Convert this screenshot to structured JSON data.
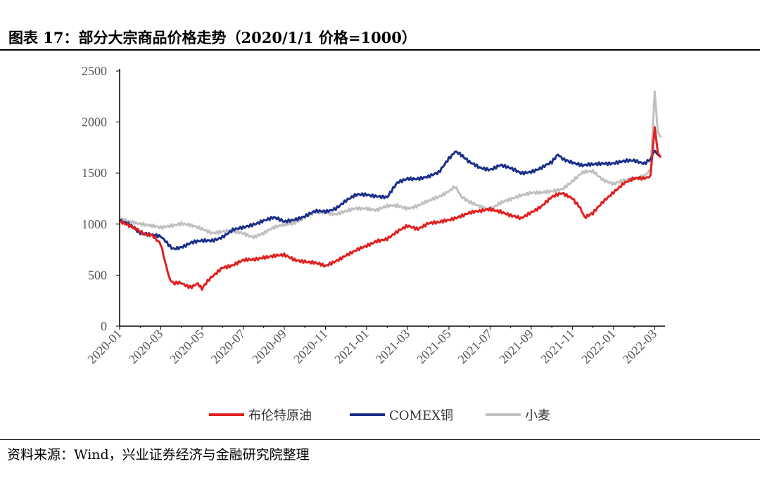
{
  "title": "图表 17：部分大宗商品价格走势（2020/1/1 价格=1000）",
  "source": "资料来源：Wind，兴业证券经济与金融研究院整理",
  "chart_data": {
    "type": "line",
    "title": "部分大宗商品价格走势（2020/1/1 价格=1000）",
    "xlabel": "",
    "ylabel": "",
    "ylim": [
      0,
      2500
    ],
    "yticks": [
      0,
      500,
      1000,
      1500,
      2000,
      2500
    ],
    "xlim": [
      0,
      26.5
    ],
    "x_tick_labels": [
      "2020-01",
      "2020-03",
      "2020-05",
      "2020-07",
      "2020-09",
      "2020-11",
      "2021-01",
      "2021-03",
      "2021-05",
      "2021-07",
      "2021-09",
      "2021-11",
      "2022-01",
      "2022-03"
    ],
    "x_tick_positions": [
      0,
      2,
      4,
      6,
      8,
      10,
      12,
      14,
      16,
      18,
      20,
      22,
      24,
      26
    ],
    "series": [
      {
        "name": "布伦特原油",
        "color": "#e02020",
        "points": [
          [
            0,
            1030
          ],
          [
            0.4,
            1000
          ],
          [
            0.8,
            960
          ],
          [
            1.2,
            900
          ],
          [
            1.6,
            880
          ],
          [
            2.0,
            800
          ],
          [
            2.2,
            640
          ],
          [
            2.4,
            480
          ],
          [
            2.6,
            430
          ],
          [
            2.9,
            420
          ],
          [
            3.2,
            400
          ],
          [
            3.5,
            390
          ],
          [
            3.8,
            410
          ],
          [
            4.0,
            360
          ],
          [
            4.2,
            420
          ],
          [
            4.5,
            480
          ],
          [
            5.0,
            580
          ],
          [
            5.5,
            600
          ],
          [
            6.0,
            640
          ],
          [
            6.5,
            650
          ],
          [
            7.0,
            680
          ],
          [
            7.5,
            690
          ],
          [
            8.0,
            690
          ],
          [
            8.5,
            650
          ],
          [
            9.0,
            640
          ],
          [
            9.5,
            620
          ],
          [
            10.0,
            580
          ],
          [
            10.5,
            640
          ],
          [
            11.0,
            700
          ],
          [
            11.5,
            740
          ],
          [
            12.0,
            780
          ],
          [
            12.5,
            840
          ],
          [
            13.0,
            860
          ],
          [
            13.5,
            920
          ],
          [
            14.0,
            980
          ],
          [
            14.5,
            960
          ],
          [
            15.0,
            1010
          ],
          [
            15.5,
            1010
          ],
          [
            16.0,
            1040
          ],
          [
            16.5,
            1080
          ],
          [
            17.0,
            1110
          ],
          [
            17.5,
            1120
          ],
          [
            18.0,
            1150
          ],
          [
            18.5,
            1130
          ],
          [
            19.0,
            1080
          ],
          [
            19.5,
            1050
          ],
          [
            20.0,
            1120
          ],
          [
            20.5,
            1180
          ],
          [
            21.0,
            1260
          ],
          [
            21.5,
            1300
          ],
          [
            22.0,
            1260
          ],
          [
            22.3,
            1180
          ],
          [
            22.6,
            1060
          ],
          [
            23.0,
            1100
          ],
          [
            23.5,
            1220
          ],
          [
            24.0,
            1320
          ],
          [
            24.5,
            1400
          ],
          [
            25.0,
            1440
          ],
          [
            25.5,
            1450
          ],
          [
            25.8,
            1480
          ],
          [
            26.0,
            1950
          ],
          [
            26.15,
            1700
          ],
          [
            26.3,
            1650
          ]
        ]
      },
      {
        "name": "COMEX铜",
        "color": "#1a2f8a",
        "points": [
          [
            0,
            1030
          ],
          [
            0.5,
            990
          ],
          [
            1.0,
            920
          ],
          [
            1.5,
            900
          ],
          [
            2.0,
            870
          ],
          [
            2.3,
            820
          ],
          [
            2.6,
            760
          ],
          [
            3.0,
            780
          ],
          [
            3.5,
            820
          ],
          [
            4.0,
            830
          ],
          [
            4.5,
            840
          ],
          [
            5.0,
            880
          ],
          [
            5.5,
            940
          ],
          [
            6.0,
            960
          ],
          [
            6.5,
            1000
          ],
          [
            7.0,
            1040
          ],
          [
            7.5,
            1060
          ],
          [
            8.0,
            1020
          ],
          [
            8.5,
            1050
          ],
          [
            9.0,
            1080
          ],
          [
            9.5,
            1120
          ],
          [
            10.0,
            1120
          ],
          [
            10.5,
            1160
          ],
          [
            11.0,
            1230
          ],
          [
            11.5,
            1280
          ],
          [
            12.0,
            1290
          ],
          [
            12.5,
            1280
          ],
          [
            13.0,
            1260
          ],
          [
            13.5,
            1400
          ],
          [
            14.0,
            1450
          ],
          [
            14.5,
            1450
          ],
          [
            15.0,
            1460
          ],
          [
            15.5,
            1500
          ],
          [
            16.0,
            1650
          ],
          [
            16.3,
            1710
          ],
          [
            16.6,
            1670
          ],
          [
            17.0,
            1600
          ],
          [
            17.5,
            1550
          ],
          [
            18.0,
            1540
          ],
          [
            18.5,
            1580
          ],
          [
            19.0,
            1540
          ],
          [
            19.5,
            1500
          ],
          [
            20.0,
            1520
          ],
          [
            20.5,
            1550
          ],
          [
            21.0,
            1600
          ],
          [
            21.3,
            1690
          ],
          [
            21.6,
            1630
          ],
          [
            22.0,
            1610
          ],
          [
            22.5,
            1570
          ],
          [
            23.0,
            1580
          ],
          [
            23.5,
            1600
          ],
          [
            24.0,
            1600
          ],
          [
            24.5,
            1610
          ],
          [
            25.0,
            1620
          ],
          [
            25.5,
            1600
          ],
          [
            25.8,
            1640
          ],
          [
            26.0,
            1720
          ],
          [
            26.15,
            1680
          ],
          [
            26.3,
            1660
          ]
        ]
      },
      {
        "name": "小麦",
        "color": "#c0c0c0",
        "points": [
          [
            0,
            1040
          ],
          [
            0.5,
            1030
          ],
          [
            1.0,
            1010
          ],
          [
            1.5,
            980
          ],
          [
            2.0,
            960
          ],
          [
            2.5,
            990
          ],
          [
            3.0,
            1010
          ],
          [
            3.5,
            980
          ],
          [
            4.0,
            950
          ],
          [
            4.5,
            920
          ],
          [
            5.0,
            930
          ],
          [
            5.5,
            920
          ],
          [
            6.0,
            910
          ],
          [
            6.5,
            880
          ],
          [
            7.0,
            910
          ],
          [
            7.5,
            960
          ],
          [
            8.0,
            1000
          ],
          [
            8.5,
            1020
          ],
          [
            9.0,
            1060
          ],
          [
            9.5,
            1110
          ],
          [
            10.0,
            1120
          ],
          [
            10.5,
            1100
          ],
          [
            11.0,
            1120
          ],
          [
            11.5,
            1150
          ],
          [
            12.0,
            1160
          ],
          [
            12.5,
            1140
          ],
          [
            13.0,
            1170
          ],
          [
            13.5,
            1180
          ],
          [
            14.0,
            1160
          ],
          [
            14.5,
            1180
          ],
          [
            15.0,
            1220
          ],
          [
            15.5,
            1270
          ],
          [
            16.0,
            1330
          ],
          [
            16.3,
            1360
          ],
          [
            16.6,
            1270
          ],
          [
            17.0,
            1210
          ],
          [
            17.5,
            1180
          ],
          [
            18.0,
            1150
          ],
          [
            18.5,
            1200
          ],
          [
            19.0,
            1240
          ],
          [
            19.5,
            1290
          ],
          [
            20.0,
            1310
          ],
          [
            20.5,
            1300
          ],
          [
            21.0,
            1320
          ],
          [
            21.5,
            1350
          ],
          [
            22.0,
            1420
          ],
          [
            22.5,
            1500
          ],
          [
            23.0,
            1520
          ],
          [
            23.5,
            1440
          ],
          [
            24.0,
            1390
          ],
          [
            24.5,
            1420
          ],
          [
            25.0,
            1450
          ],
          [
            25.5,
            1480
          ],
          [
            25.8,
            1520
          ],
          [
            26.0,
            2300
          ],
          [
            26.15,
            1900
          ],
          [
            26.3,
            1850
          ]
        ]
      }
    ]
  }
}
